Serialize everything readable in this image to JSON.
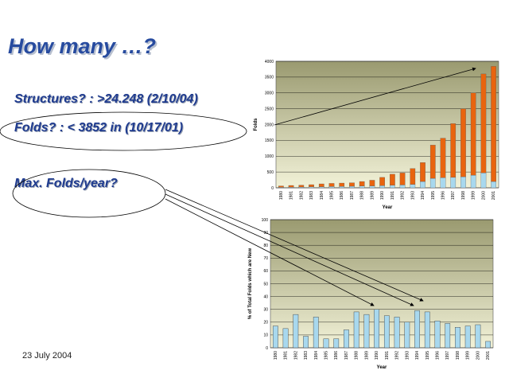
{
  "slide": {
    "title": "How many …?",
    "q1": "Structures? : >24.248 (2/10/04)",
    "q2": "Folds? : < 3852 in  (10/17/01)",
    "q3": "Max. Folds/year?",
    "date": "23 July 2004"
  },
  "colors": {
    "text": "#1f3b8f",
    "bar_orange": "#e8640f",
    "bar_blue": "#a8d8ee",
    "plot_bg_top": "#9a9a70",
    "plot_bg_bottom": "#f2f2d8"
  },
  "chart_data": [
    {
      "type": "bar",
      "stacked": true,
      "ylabel": "Folds",
      "xlabel": "Year",
      "ylim": [
        0,
        4000
      ],
      "yticks": [
        0,
        500,
        1000,
        1500,
        2000,
        2500,
        3000,
        3500,
        4000
      ],
      "grid": true,
      "categories": [
        "1980",
        "1981",
        "1982",
        "1983",
        "1984",
        "1985",
        "1986",
        "1987",
        "1988",
        "1989",
        "1990",
        "1991",
        "1992",
        "1993",
        "1994",
        "1995",
        "1996",
        "1997",
        "1998",
        "1999",
        "2000",
        "2001"
      ],
      "series": [
        {
          "values": [
            15,
            20,
            25,
            30,
            35,
            40,
            45,
            50,
            55,
            60,
            70,
            80,
            90,
            110,
            200,
            300,
            320,
            330,
            350,
            400,
            470,
            200
          ]
        },
        {
          "values": [
            45,
            55,
            60,
            70,
            90,
            100,
            105,
            110,
            145,
            180,
            260,
            350,
            380,
            500,
            600,
            1050,
            1250,
            1700,
            2150,
            2600,
            3130,
            3640
          ]
        }
      ]
    },
    {
      "type": "bar",
      "ylabel": "% of Total Folds which are New",
      "xlabel": "Year",
      "ylim": [
        0,
        100
      ],
      "yticks": [
        0,
        10,
        20,
        30,
        40,
        50,
        60,
        70,
        80,
        90,
        100
      ],
      "grid": true,
      "categories": [
        "1980",
        "1981",
        "1982",
        "1983",
        "1984",
        "1985",
        "1986",
        "1987",
        "1988",
        "1989",
        "1990",
        "1991",
        "1992",
        "1993",
        "1994",
        "1995",
        "1996",
        "1997",
        "1998",
        "1999",
        "2000",
        "2001"
      ],
      "values": [
        17,
        15,
        26,
        9,
        24,
        7,
        7,
        14,
        28,
        26,
        30,
        25,
        24,
        20,
        29,
        28,
        21,
        19,
        16,
        17,
        18,
        5
      ]
    }
  ]
}
